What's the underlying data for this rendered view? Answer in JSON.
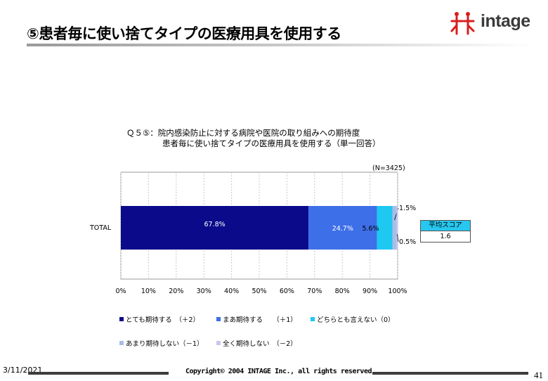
{
  "slide": {
    "title": "⑤患者毎に使い捨てタイプの医療用具を使用する",
    "date": "3/11/2021",
    "copyright": "Copyright© 2004 INTAGE Inc., all rights reserved.",
    "page_number": "41",
    "logo_text": "intage"
  },
  "colors": {
    "title_rule": "#9a9a9a",
    "footer_rule": "#3c3c3c",
    "avg_header": "#27c7ef",
    "logo_red": "#d81e1e",
    "logo_gray": "#3a3a3a"
  },
  "chart_data": {
    "type": "bar",
    "orientation": "horizontal",
    "stacked": true,
    "percent_stacked": true,
    "title_lines": [
      "Ｑ５⑤：院内感染防止に対する病院や医院の取り組みへの期待度",
      "患者毎に使い捨てタイプの医療用具を使用する（単一回答）"
    ],
    "sample_size": "(N=3425)",
    "categories": [
      "TOTAL"
    ],
    "xlim": [
      0,
      100
    ],
    "x_ticks": [
      "0%",
      "10%",
      "20%",
      "30%",
      "40%",
      "50%",
      "60%",
      "70%",
      "80%",
      "90%",
      "100%"
    ],
    "grid": true,
    "series": [
      {
        "name": "とても期待する　（＋2）",
        "values": [
          67.8
        ],
        "label": "67.8%",
        "color": "#0a0a8a"
      },
      {
        "name": "まあ期待する　　（＋1）",
        "values": [
          24.7
        ],
        "label": "24.7%",
        "color": "#3d6fe8"
      },
      {
        "name": "どちらとも言えない（0）",
        "values": [
          5.6
        ],
        "label": "5.6%",
        "color": "#1ec8f0"
      },
      {
        "name": "あまり期待しない（－1）",
        "values": [
          1.5
        ],
        "label": "1.5%",
        "color": "#a9bde8"
      },
      {
        "name": "全く期待しない　（－2）",
        "values": [
          0.5
        ],
        "label": "0.5%",
        "color": "#c7c7ee"
      }
    ],
    "average_score": {
      "header": "平均スコア",
      "value": "1.6"
    },
    "legend_position": "bottom"
  }
}
